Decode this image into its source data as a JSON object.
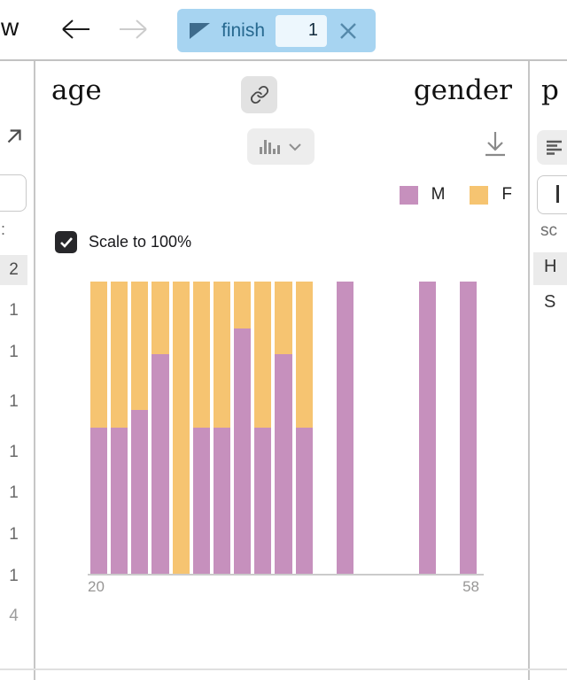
{
  "topbar": {
    "word_fragment": "w",
    "back_icon": "arrow-left-icon",
    "forward_icon": "arrow-right-icon",
    "search_pill": {
      "flag_icon": "flag-icon",
      "query": "finish",
      "match_count": "1",
      "close_icon": "close-icon",
      "bg_color": "#a7d4f1"
    }
  },
  "left_strip": {
    "open_icon": "arrow-up-right-icon",
    "text_fragment": ":",
    "counts": [
      {
        "value": "2",
        "highlighted": true
      },
      {
        "value": "1"
      },
      {
        "value": "1"
      },
      {
        "value": "1"
      },
      {
        "value": "1"
      },
      {
        "value": "1"
      },
      {
        "value": "1"
      },
      {
        "value": "1"
      },
      {
        "value": "4",
        "muted": true
      }
    ]
  },
  "right_strip": {
    "header_fragment": "p",
    "list_icon": "list-icon",
    "label_fragment": "sc",
    "values": [
      {
        "value": "H",
        "highlighted": true
      },
      {
        "value": "S",
        "highlighted": false
      }
    ]
  },
  "panel": {
    "left_header": "age",
    "right_header": "gender",
    "link_icon": "link-icon",
    "chart_type_icon": "histogram-icon",
    "chevron_icon": "chevron-down-icon",
    "download_icon": "download-icon",
    "scale_checkbox": {
      "label": "Scale to 100%",
      "checked": true
    }
  },
  "chart_data": {
    "type": "bar",
    "subtype": "stacked-histogram-scaled-to-100%",
    "title": "age distribution colored by gender",
    "xlabel": "age",
    "x_domain": [
      20,
      58
    ],
    "x_ticks": [
      "20",
      "58"
    ],
    "bin_width_years": 2,
    "grid": false,
    "legend_position": "top-right",
    "series_names": [
      "M",
      "F"
    ],
    "colors": {
      "M": "#c690bd",
      "F": "#f6c471"
    },
    "bins": [
      {
        "x0": 20,
        "x1": 22,
        "M_frac": 0.5,
        "F_frac": 0.5
      },
      {
        "x0": 22,
        "x1": 24,
        "M_frac": 0.5,
        "F_frac": 0.5
      },
      {
        "x0": 24,
        "x1": 26,
        "M_frac": 0.56,
        "F_frac": 0.44
      },
      {
        "x0": 26,
        "x1": 28,
        "M_frac": 0.75,
        "F_frac": 0.25
      },
      {
        "x0": 28,
        "x1": 30,
        "M_frac": 0.0,
        "F_frac": 1.0
      },
      {
        "x0": 30,
        "x1": 32,
        "M_frac": 0.5,
        "F_frac": 0.5
      },
      {
        "x0": 32,
        "x1": 34,
        "M_frac": 0.5,
        "F_frac": 0.5
      },
      {
        "x0": 34,
        "x1": 36,
        "M_frac": 0.84,
        "F_frac": 0.16
      },
      {
        "x0": 36,
        "x1": 38,
        "M_frac": 0.5,
        "F_frac": 0.5
      },
      {
        "x0": 38,
        "x1": 40,
        "M_frac": 0.75,
        "F_frac": 0.25
      },
      {
        "x0": 40,
        "x1": 42,
        "M_frac": 0.5,
        "F_frac": 0.5
      },
      {
        "x0": 44,
        "x1": 46,
        "M_frac": 1.0,
        "F_frac": 0.0
      },
      {
        "x0": 52,
        "x1": 54,
        "M_frac": 1.0,
        "F_frac": 0.0
      },
      {
        "x0": 56,
        "x1": 58,
        "M_frac": 1.0,
        "F_frac": 0.0
      }
    ]
  }
}
